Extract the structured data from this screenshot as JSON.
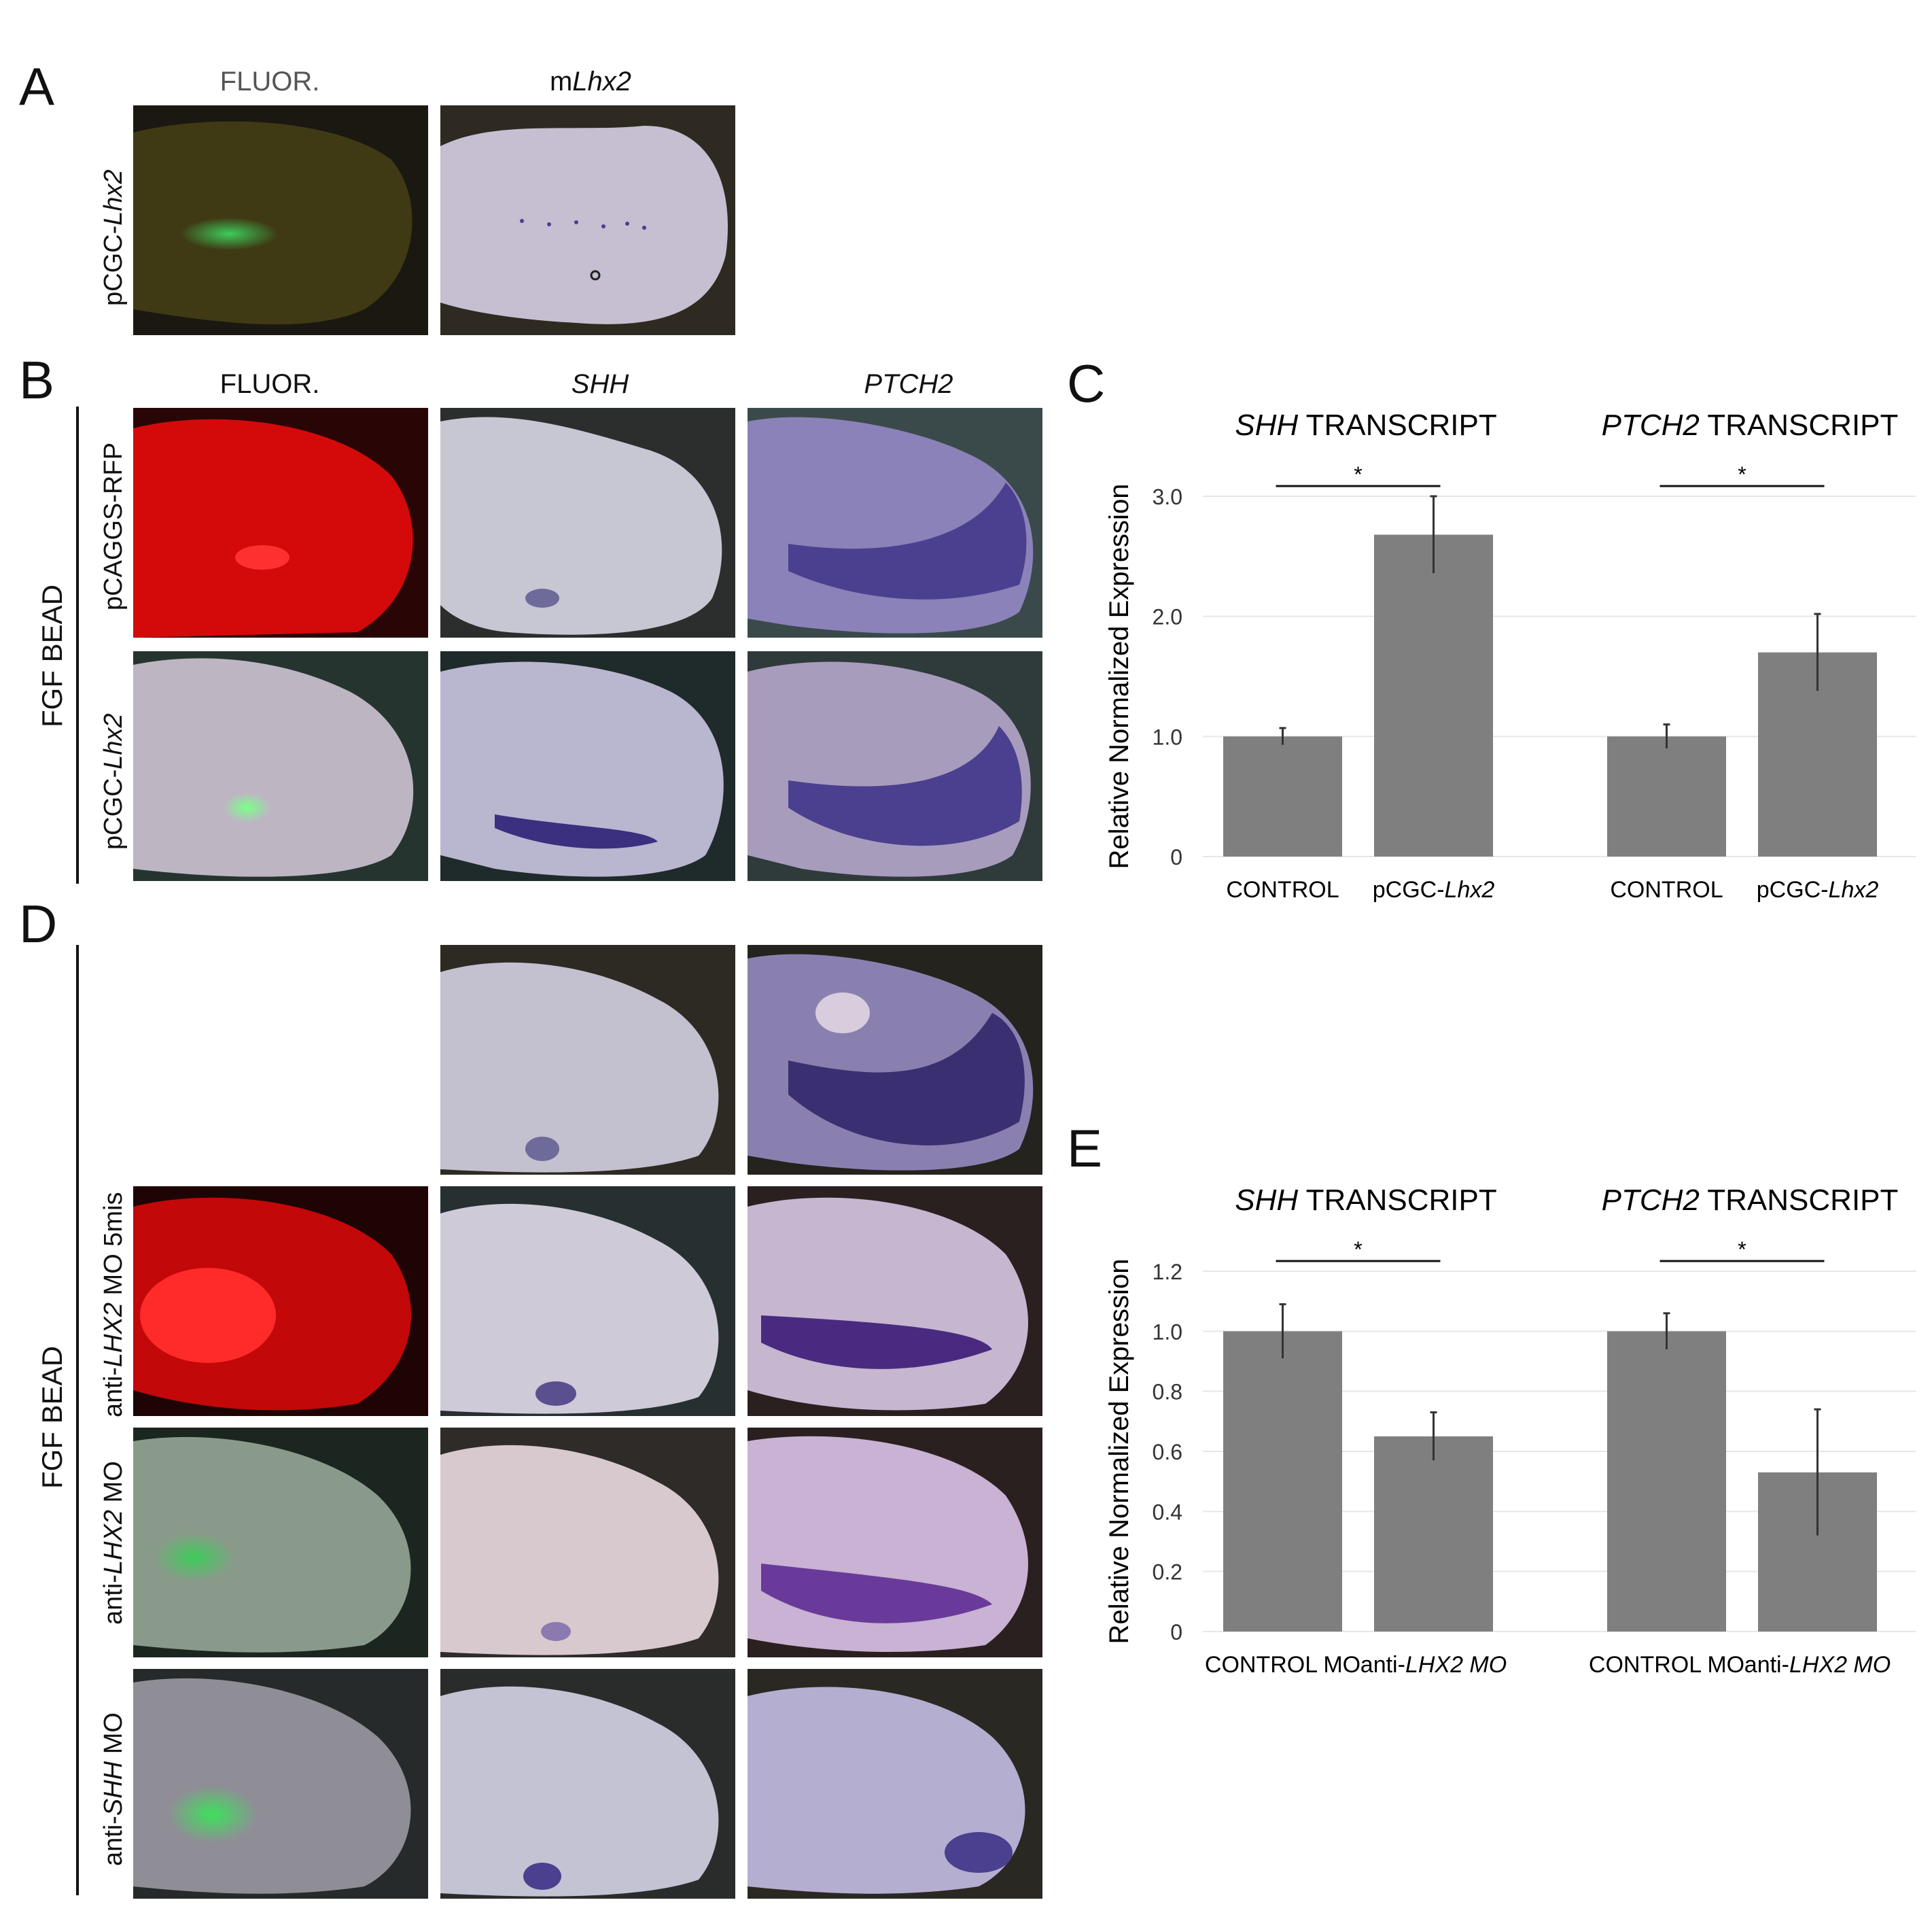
{
  "panels": {
    "A": {
      "label": "A",
      "col_headers": [
        "FLUOR.",
        "mLhx2"
      ],
      "row_label": "pCGC-Lhx2"
    },
    "B": {
      "label": "B",
      "col_headers": [
        "FLUOR.",
        "SHH",
        "PTCH2"
      ],
      "rows": [
        "pCAGGS-RFP",
        "pCGC-Lhx2"
      ],
      "group_label": "FGF BEAD"
    },
    "C": {
      "label": "C",
      "y_axis_label": "Relative Normalized Expression"
    },
    "D": {
      "label": "D",
      "rows": [
        "anti-LHX2 MO 5mis",
        "anti-LHX2 MO",
        "anti-SHH MO"
      ],
      "group_label": "FGF BEAD"
    },
    "E": {
      "label": "E",
      "y_axis_label": "Relative Normalized Expression"
    }
  },
  "chart_data": [
    {
      "panel": "C",
      "type": "bar",
      "ylabel": "Relative Normalized Expression",
      "ylim": [
        0,
        3.0
      ],
      "yticks": [
        "0",
        "1.0",
        "2.0",
        "3.0"
      ],
      "groups": [
        {
          "title_italic": "SHH",
          "title_rest": " TRANSCRIPT",
          "categories": [
            "CONTROL",
            "pCGC-Lhx2"
          ],
          "values": [
            1.0,
            2.68
          ],
          "errors": [
            0.07,
            0.32
          ],
          "significance": "*"
        },
        {
          "title_italic": "PTCH2",
          "title_rest": " TRANSCRIPT",
          "categories": [
            "CONTROL",
            "pCGC-Lhx2"
          ],
          "values": [
            1.0,
            1.7
          ],
          "errors": [
            0.1,
            0.32
          ],
          "significance": "*"
        }
      ]
    },
    {
      "panel": "E",
      "type": "bar",
      "ylabel": "Relative Normalized Expression",
      "ylim": [
        0,
        1.2
      ],
      "yticks": [
        "0",
        "0.2",
        "0.4",
        "0.6",
        "0.8",
        "1.0",
        "1.2"
      ],
      "groups": [
        {
          "title_italic": "SHH",
          "title_rest": " TRANSCRIPT",
          "categories": [
            "CONTROL MO",
            "anti-LHX2 MO"
          ],
          "values": [
            1.0,
            0.65
          ],
          "errors": [
            0.09,
            0.08
          ],
          "significance": "*"
        },
        {
          "title_italic": "PTCH2",
          "title_rest": " TRANSCRIPT",
          "categories": [
            "CONTROL MO",
            "anti-LHX2 MO"
          ],
          "values": [
            1.0,
            0.53
          ],
          "errors": [
            0.06,
            0.21
          ],
          "significance": "*"
        }
      ]
    }
  ],
  "colors": {
    "bar": "#7f7f7f",
    "fluor_green": "#3ecc5a",
    "fluor_red": "#e01010",
    "stain_purple": "#4b3f8f"
  }
}
